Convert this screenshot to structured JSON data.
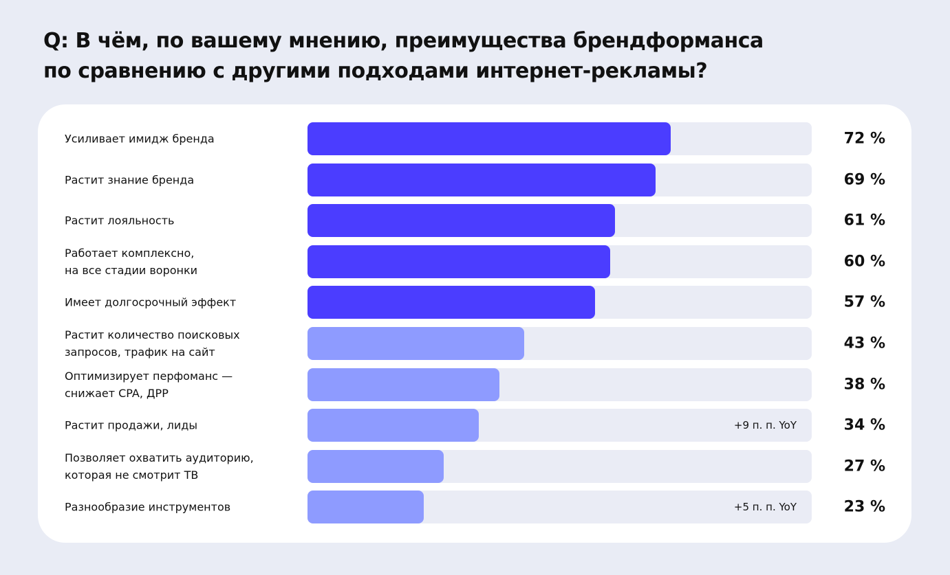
{
  "chart_data": {
    "type": "bar",
    "orientation": "horizontal",
    "title": "Q: В чём, по вашему мнению, преимущества брендформанса\nпо сравнению с другими подходами интернет-рекламы?",
    "categories": [
      "Усиливает имидж бренда",
      "Растит знание бренда",
      "Растит лояльность",
      "Работает комплексно,\nна все стадии воронки",
      "Имеет долгосрочный эффект",
      "Растит количество поисковых\nзапросов, трафик на сайт",
      "Оптимизирует перфоманс —\nснижает CPA, ДРР",
      "Растит продажи, лиды",
      "Позволяет охватить аудиторию,\nкоторая не смотрит ТВ",
      "Разнообразие инструментов"
    ],
    "values": [
      72,
      69,
      61,
      60,
      57,
      43,
      38,
      34,
      27,
      23
    ],
    "value_labels": [
      "72 %",
      "69 %",
      "61 %",
      "60 %",
      "57 %",
      "43 %",
      "38 %",
      "34 %",
      "27 %",
      "23 %"
    ],
    "colors": [
      "#4b3dff",
      "#4b3dff",
      "#4b3dff",
      "#4b3dff",
      "#4b3dff",
      "#8e9bff",
      "#8e9bff",
      "#8e9bff",
      "#8e9bff",
      "#8e9bff"
    ],
    "annotations": [
      null,
      null,
      null,
      null,
      null,
      null,
      null,
      "+9 п. п. YoY",
      null,
      "+5 п. п. YoY"
    ],
    "track_color": "#eaecf5",
    "xlim": [
      0,
      100
    ]
  }
}
